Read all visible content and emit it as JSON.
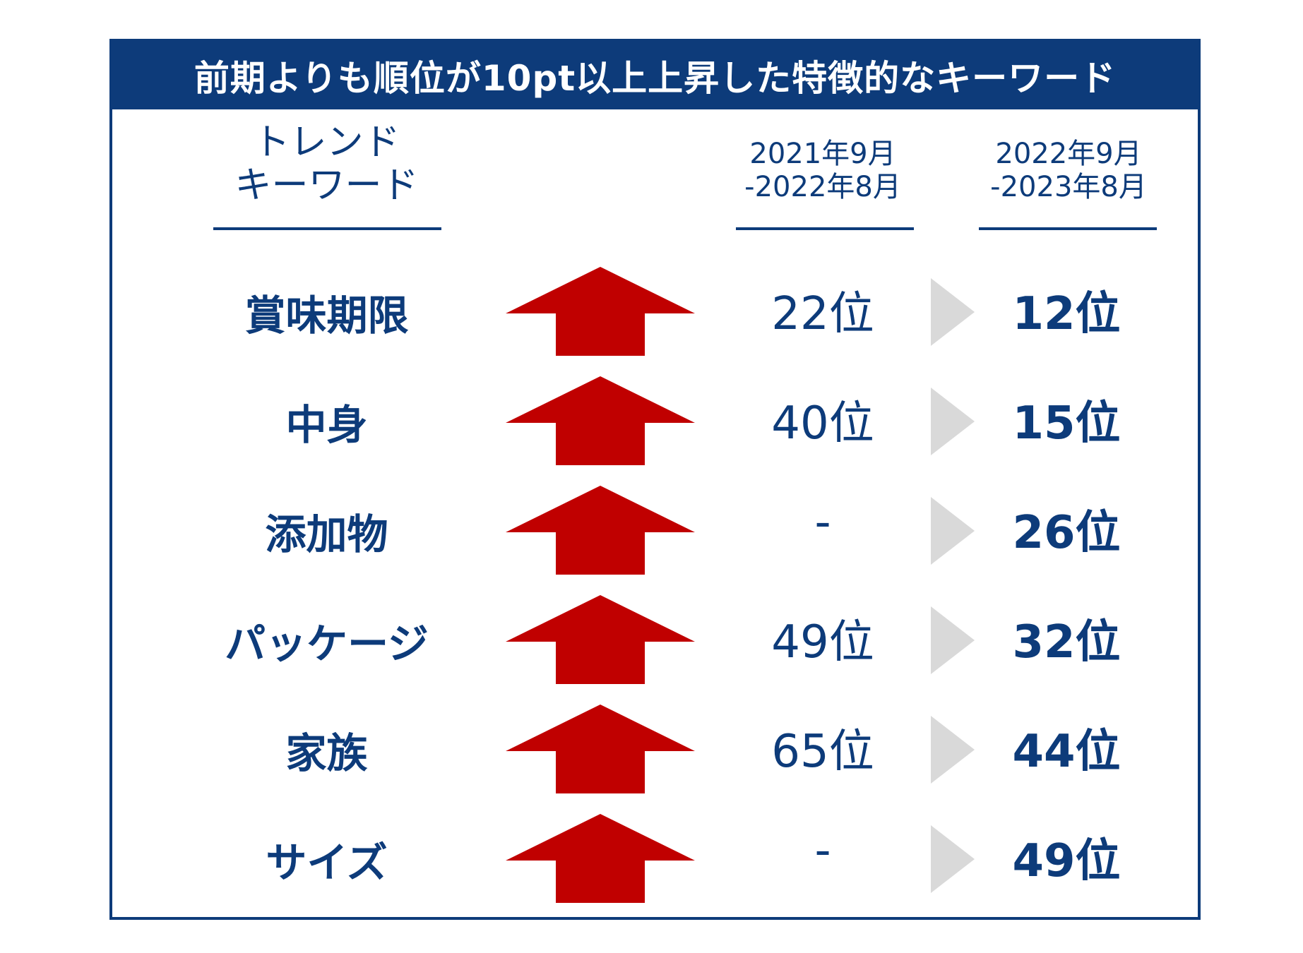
{
  "title": "前期よりも順位が10pt以上上昇した特徴的なキーワード",
  "columns": {
    "keyword_header": [
      "トレンド",
      "キーワード"
    ],
    "period1_header": [
      "2021年9月",
      "-2022年8月"
    ],
    "period2_header": [
      "2022年9月",
      "-2023年8月"
    ]
  },
  "rows": [
    {
      "keyword": "賞味期限",
      "prev_rank": "22位",
      "curr_rank": "12位"
    },
    {
      "keyword": "中身",
      "prev_rank": "40位",
      "curr_rank": "15位"
    },
    {
      "keyword": "添加物",
      "prev_rank": "-",
      "curr_rank": "26位"
    },
    {
      "keyword": "パッケージ",
      "prev_rank": "49位",
      "curr_rank": "32位"
    },
    {
      "keyword": "家族",
      "prev_rank": "65位",
      "curr_rank": "44位"
    },
    {
      "keyword": "サイズ",
      "prev_rank": "-",
      "curr_rank": "49位"
    }
  ],
  "icons": {
    "trend": "up-arrow-icon",
    "change": "play-triangle-icon"
  },
  "colors": {
    "navy": "#0d3b7a",
    "arrow_red": "#c00000",
    "triangle_gray": "#d9d9d9"
  }
}
